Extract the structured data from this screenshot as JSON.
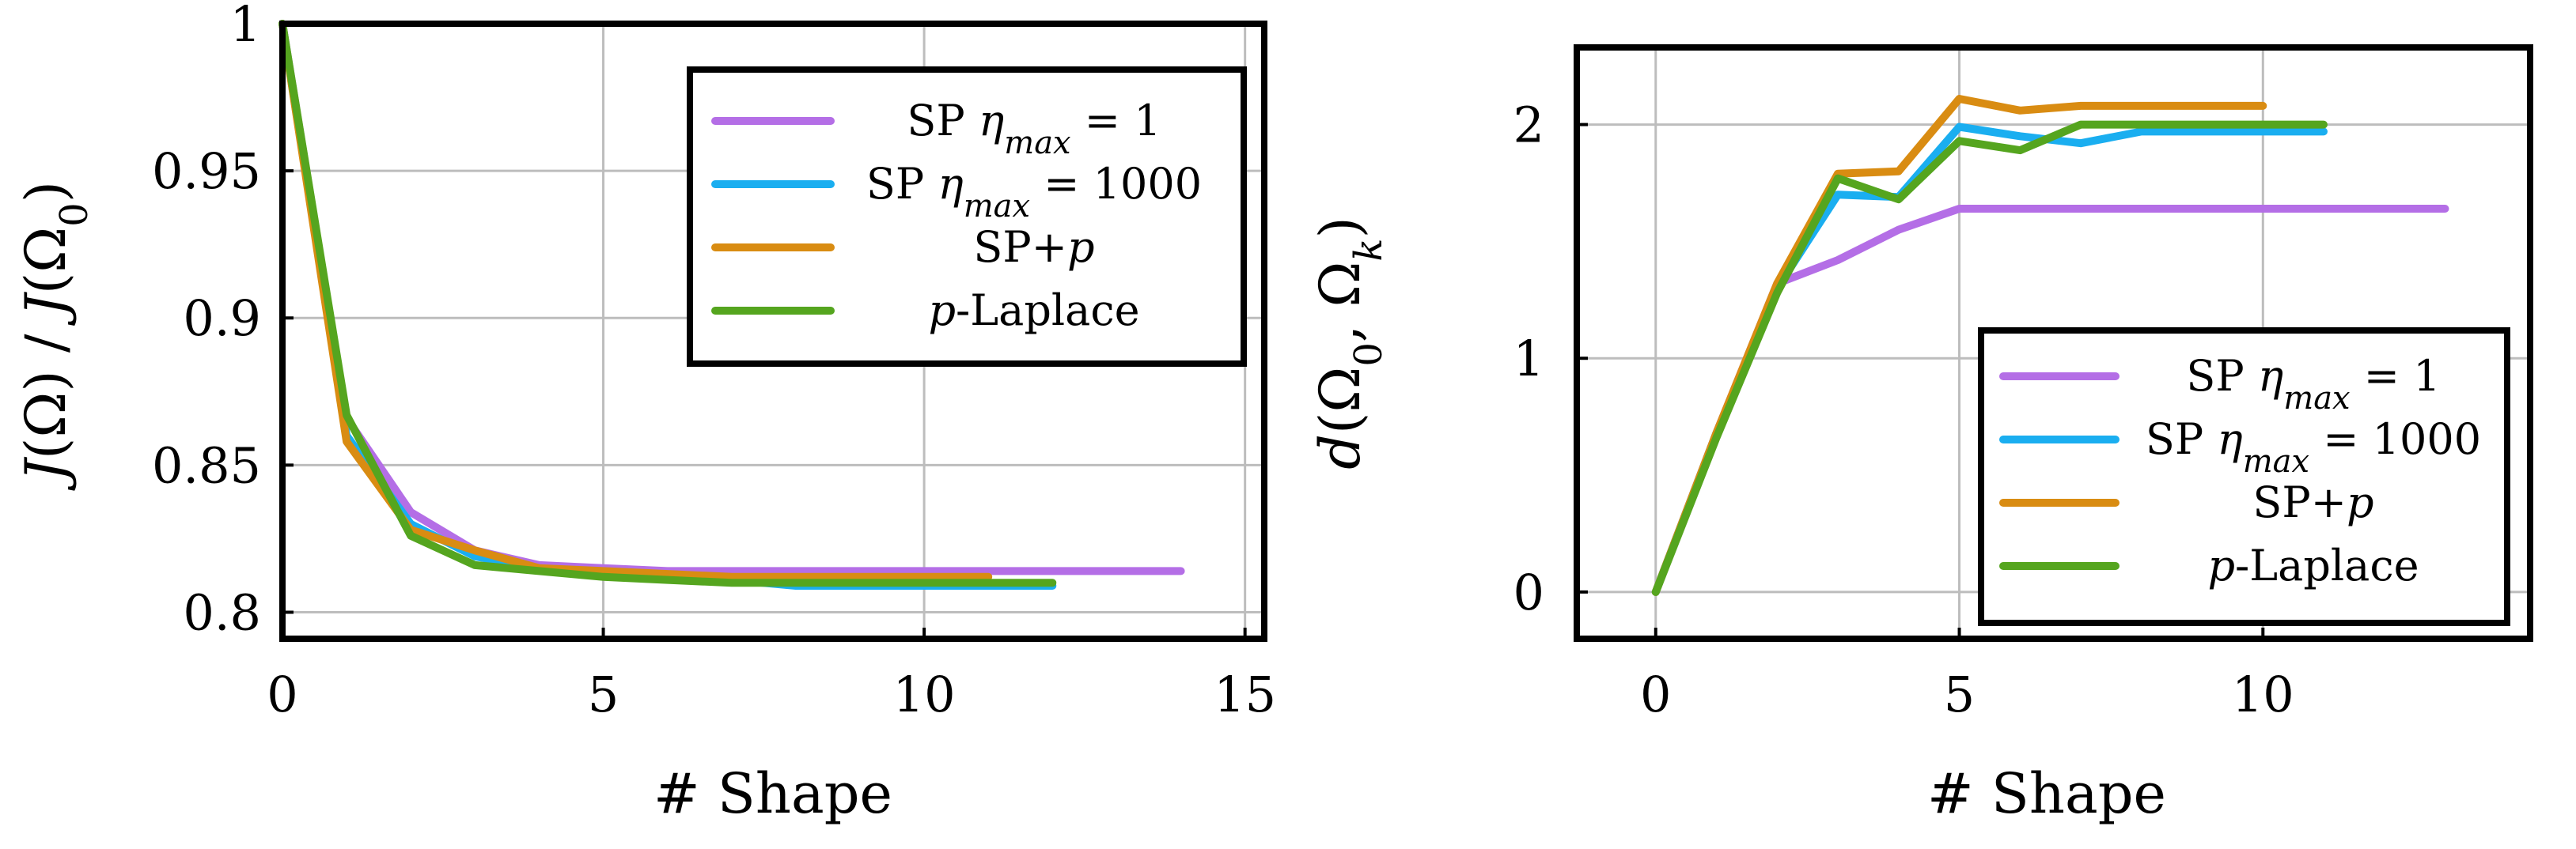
{
  "colors": {
    "sp_eta1": "#b46ee6",
    "sp_eta1000": "#1aaef0",
    "sp_p": "#d98c12",
    "p_laplace": "#55a51f"
  },
  "chart_data": [
    {
      "type": "line",
      "title": "",
      "xlabel": "# Shape",
      "ylabel": "J(Ω) / J(Ω₀)",
      "xlim": [
        0,
        15.3
      ],
      "ylim": [
        0.791,
        1.0
      ],
      "xticks": [
        0,
        5,
        10,
        15
      ],
      "xtick_labels": [
        "0",
        "5",
        "10",
        "15"
      ],
      "yticks": [
        0.8,
        0.85,
        0.9,
        0.95,
        1.0
      ],
      "ytick_labels": [
        "0.8",
        "0.85",
        "0.9",
        "0.95",
        "1"
      ],
      "grid": true,
      "legend_position": "top-right",
      "series": [
        {
          "name": "SP η_max = 1",
          "label_prefix": "SP η",
          "label_sub": "max",
          "label_suffix": " = 1",
          "color_key": "sp_eta1",
          "x": [
            0,
            1,
            2,
            3,
            4,
            5,
            6,
            7,
            8,
            9,
            10,
            11,
            12,
            13,
            14
          ],
          "y": [
            1.0,
            0.866,
            0.834,
            0.821,
            0.816,
            0.815,
            0.814,
            0.814,
            0.814,
            0.814,
            0.814,
            0.814,
            0.814,
            0.814,
            0.814
          ]
        },
        {
          "name": "SP η_max = 1000",
          "label_prefix": "SP η",
          "label_sub": "max",
          "label_suffix": " = 1000",
          "color_key": "sp_eta1000",
          "x": [
            0,
            1,
            2,
            3,
            4,
            5,
            6,
            7,
            8,
            9,
            10,
            11,
            12
          ],
          "y": [
            1.0,
            0.86,
            0.83,
            0.819,
            0.815,
            0.813,
            0.812,
            0.811,
            0.809,
            0.809,
            0.809,
            0.809,
            0.809
          ]
        },
        {
          "name": "SP+p",
          "label_prefix": "SP+",
          "label_italic": "p",
          "label_suffix": "",
          "color_key": "sp_p",
          "x": [
            0,
            1,
            2,
            3,
            4,
            5,
            6,
            7,
            8,
            9,
            10,
            11
          ],
          "y": [
            1.0,
            0.858,
            0.828,
            0.821,
            0.815,
            0.814,
            0.813,
            0.812,
            0.812,
            0.812,
            0.812,
            0.812
          ]
        },
        {
          "name": "p-Laplace",
          "label_italic_first": "p",
          "label_suffix": "-Laplace",
          "color_key": "p_laplace",
          "x": [
            0,
            1,
            2,
            3,
            4,
            5,
            6,
            7,
            8,
            9,
            10,
            11,
            12
          ],
          "y": [
            1.0,
            0.867,
            0.826,
            0.816,
            0.814,
            0.812,
            0.811,
            0.81,
            0.81,
            0.81,
            0.81,
            0.81,
            0.81
          ]
        }
      ]
    },
    {
      "type": "line",
      "title": "",
      "xlabel": "# Shape",
      "ylabel": "d(Ω₀, Ωₖ)",
      "xlim": [
        -1.3,
        14.4
      ],
      "ylim": [
        -0.2,
        2.33
      ],
      "xticks": [
        0,
        5,
        10
      ],
      "xtick_labels": [
        "0",
        "5",
        "10"
      ],
      "yticks": [
        0,
        1,
        2
      ],
      "ytick_labels": [
        "0",
        "1",
        "2"
      ],
      "grid": true,
      "legend_position": "bottom-right",
      "series": [
        {
          "name": "SP η_max = 1",
          "label_prefix": "SP η",
          "label_sub": "max",
          "label_suffix": " = 1",
          "color_key": "sp_eta1",
          "x": [
            0,
            1,
            2,
            3,
            4,
            5,
            6,
            7,
            8,
            9,
            10,
            11,
            12,
            13
          ],
          "y": [
            0,
            0.68,
            1.32,
            1.42,
            1.55,
            1.64,
            1.64,
            1.64,
            1.64,
            1.64,
            1.64,
            1.64,
            1.64,
            1.64
          ]
        },
        {
          "name": "SP η_max = 1000",
          "label_prefix": "SP η",
          "label_sub": "max",
          "label_suffix": " = 1000",
          "color_key": "sp_eta1000",
          "x": [
            0,
            1,
            2,
            3,
            4,
            5,
            6,
            7,
            8,
            9,
            10,
            11
          ],
          "y": [
            0,
            0.68,
            1.3,
            1.7,
            1.69,
            1.99,
            1.95,
            1.92,
            1.97,
            1.97,
            1.97,
            1.97
          ]
        },
        {
          "name": "SP+p",
          "label_prefix": "SP+",
          "label_italic": "p",
          "label_suffix": "",
          "color_key": "sp_p",
          "x": [
            0,
            1,
            2,
            3,
            4,
            5,
            6,
            7,
            8,
            9,
            10
          ],
          "y": [
            0,
            0.68,
            1.32,
            1.79,
            1.8,
            2.11,
            2.06,
            2.08,
            2.08,
            2.08,
            2.08
          ]
        },
        {
          "name": "p-Laplace",
          "label_italic_first": "p",
          "label_suffix": "-Laplace",
          "color_key": "p_laplace",
          "x": [
            0,
            1,
            2,
            3,
            4,
            5,
            6,
            7,
            8,
            9,
            10,
            11
          ],
          "y": [
            0,
            0.66,
            1.28,
            1.77,
            1.68,
            1.93,
            1.89,
            2.0,
            2.0,
            2.0,
            2.0,
            2.0
          ]
        }
      ]
    }
  ]
}
